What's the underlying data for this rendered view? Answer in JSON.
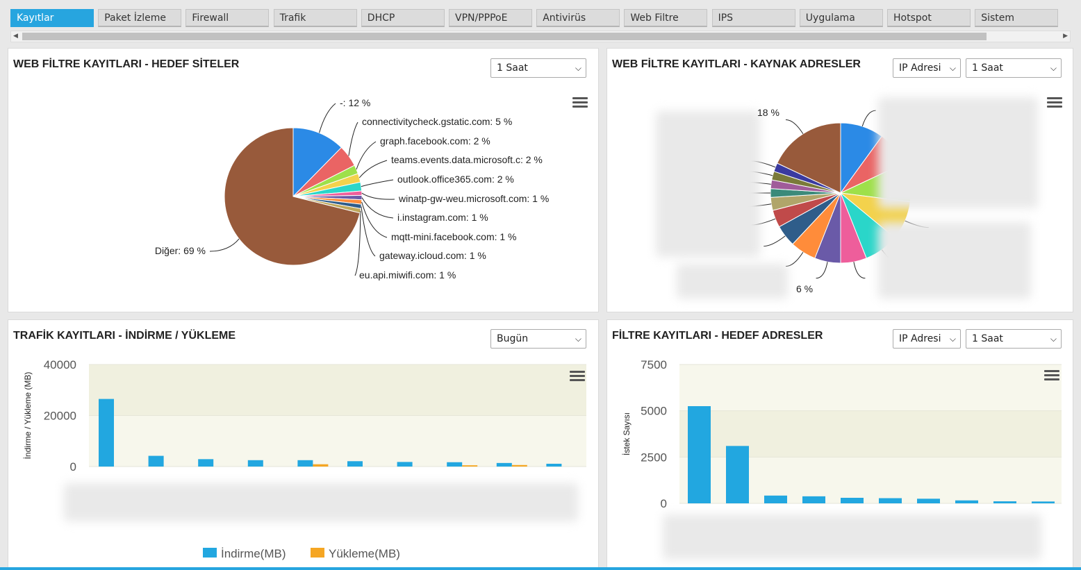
{
  "tabs": [
    "Kayıtlar",
    "Paket İzleme",
    "Firewall",
    "Trafik",
    "DHCP",
    "VPN/PPPoE",
    "Antivirüs",
    "Web Filtre",
    "IPS",
    "Uygulama",
    "Hotspot",
    "Sistem"
  ],
  "active_tab": 0,
  "panels": {
    "web_target": {
      "title": "WEB FİLTRE KAYITLARI - HEDEF SİTELER",
      "time_select": "1 Saat"
    },
    "web_source": {
      "title": "WEB FİLTRE KAYITLARI - KAYNAK ADRESLER",
      "ip_select": "IP Adresi",
      "time_select": "1 Saat",
      "visible_labels": [
        "18 %",
        "6 %"
      ]
    },
    "traffic": {
      "title": "TRAFİK KAYITLARI - İNDİRME / YÜKLEME",
      "time_select": "Bugün"
    },
    "filter_target": {
      "title": "FİLTRE KAYITLARI - HEDEF ADRESLER",
      "ip_select": "IP Adresi",
      "time_select": "1 Saat"
    }
  },
  "chart_data": [
    {
      "type": "pie",
      "title": "",
      "slices": [
        {
          "label": "-",
          "value": 12,
          "color": "#2b8ae6"
        },
        {
          "label": "connectivitycheck.gstatic.com",
          "value": 5,
          "color": "#ea6464"
        },
        {
          "label": "graph.facebook.com",
          "value": 2,
          "color": "#9ee04a"
        },
        {
          "label": "teams.events.data.microsoft.c",
          "value": 2,
          "color": "#f3d24c"
        },
        {
          "label": "outlook.office365.com",
          "value": 2,
          "color": "#2ad6c9"
        },
        {
          "label": "winatp-gw-weu.microsoft.com",
          "value": 1,
          "color": "#ee5e9b"
        },
        {
          "label": "i.instagram.com",
          "value": 1,
          "color": "#6a5aa8"
        },
        {
          "label": "mqtt-mini.facebook.com",
          "value": 1,
          "color": "#ff8c3a"
        },
        {
          "label": "gateway.icloud.com",
          "value": 1,
          "color": "#2f5d8a"
        },
        {
          "label": "eu.api.miwifi.com",
          "value": 1,
          "color": "#bfa75a"
        },
        {
          "label": "Diğer",
          "value": 69,
          "color": "#985a3b"
        }
      ],
      "percent_suffix": " %"
    },
    {
      "type": "pie",
      "slices": [
        {
          "label": "",
          "value": 10,
          "color": "#2b8ae6"
        },
        {
          "label": "",
          "value": 8,
          "color": "#ea6464"
        },
        {
          "label": "",
          "value": 9,
          "color": "#9ee04a"
        },
        {
          "label": "",
          "value": 9,
          "color": "#f3d24c"
        },
        {
          "label": "",
          "value": 8,
          "color": "#2ad6c9"
        },
        {
          "label": "",
          "value": 6,
          "color": "#ee5e9b"
        },
        {
          "label": "",
          "value": 6,
          "color": "#6a5aa8"
        },
        {
          "label": "",
          "value": 6,
          "color": "#ff8c3a"
        },
        {
          "label": "",
          "value": 5,
          "color": "#2f5d8a"
        },
        {
          "label": "",
          "value": 4,
          "color": "#c04a4a"
        },
        {
          "label": "",
          "value": 3,
          "color": "#b0a56a"
        },
        {
          "label": "",
          "value": 2,
          "color": "#3b8a7a"
        },
        {
          "label": "",
          "value": 2,
          "color": "#a05c9a"
        },
        {
          "label": "",
          "value": 2,
          "color": "#7a7a3a"
        },
        {
          "label": "",
          "value": 2,
          "color": "#3a3aa0"
        },
        {
          "label": "",
          "value": 18,
          "color": "#985a3b"
        }
      ]
    },
    {
      "type": "bar",
      "ylabel": "İndirme / Yükleme (MB)",
      "ylim": [
        0,
        40000
      ],
      "yticks": [
        0,
        20000,
        40000
      ],
      "series": [
        {
          "name": "İndirme(MB)",
          "color": "#22a7e0",
          "values": [
            26500,
            4200,
            2900,
            2500,
            2500,
            2100,
            1800,
            1700,
            1400,
            1100
          ]
        },
        {
          "name": "Yükleme(MB)",
          "color": "#f5a623",
          "values": [
            0,
            0,
            0,
            0,
            900,
            0,
            0,
            500,
            600,
            0
          ]
        }
      ]
    },
    {
      "type": "bar",
      "ylabel": "İstek Sayısı",
      "ylim": [
        0,
        7500
      ],
      "yticks": [
        0,
        2500,
        5000,
        7500
      ],
      "series": [
        {
          "name": "",
          "color": "#22a7e0",
          "values": [
            5250,
            3100,
            420,
            380,
            300,
            280,
            250,
            160,
            110,
            100
          ]
        }
      ]
    }
  ]
}
